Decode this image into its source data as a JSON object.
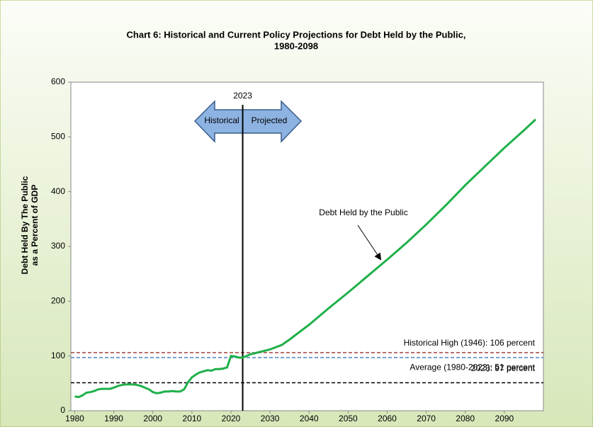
{
  "chart_data": {
    "type": "line",
    "title": [
      "Chart 6:  Historical and Current Policy Projections for Debt Held by the Public,",
      "1980-2098"
    ],
    "y_label": [
      "Debt Held By The Public",
      "as a Percent of GDP"
    ],
    "xlim": [
      1979,
      2100
    ],
    "ylim": [
      0,
      600
    ],
    "xticks": [
      1980,
      1990,
      2000,
      2010,
      2020,
      2030,
      2040,
      2050,
      2060,
      2070,
      2080,
      2090
    ],
    "yticks": [
      0,
      100,
      200,
      300,
      400,
      500,
      600
    ],
    "series": [
      {
        "name": "Debt Held by the Public",
        "color": "#1fb04a",
        "x": [
          1980,
          1981,
          1982,
          1983,
          1984,
          1985,
          1986,
          1987,
          1988,
          1989,
          1990,
          1991,
          1992,
          1993,
          1994,
          1995,
          1996,
          1997,
          1998,
          1999,
          2000,
          2001,
          2002,
          2003,
          2004,
          2005,
          2006,
          2007,
          2008,
          2009,
          2010,
          2011,
          2012,
          2013,
          2014,
          2015,
          2016,
          2017,
          2018,
          2019,
          2020,
          2021,
          2022,
          2023,
          2025,
          2030,
          2033,
          2035,
          2040,
          2045,
          2050,
          2055,
          2060,
          2065,
          2070,
          2075,
          2080,
          2085,
          2090,
          2095,
          2098
        ],
        "values": [
          26,
          25,
          28,
          33,
          34,
          36,
          39,
          40,
          40,
          40,
          42,
          45,
          47,
          48,
          48,
          48,
          47,
          45,
          42,
          39,
          34,
          32,
          33,
          35,
          35,
          36,
          35,
          35,
          39,
          52,
          61,
          66,
          70,
          72,
          74,
          73,
          76,
          76,
          77,
          79,
          100,
          99,
          97,
          97,
          103,
          112,
          120,
          130,
          157,
          187,
          216,
          246,
          276,
          307,
          340,
          375,
          412,
          446,
          480,
          512,
          532
        ]
      }
    ],
    "reference_lines": [
      {
        "value": 106,
        "label": "Historical High (1946): 106 percent",
        "color": "#a0403c"
      },
      {
        "value": 97,
        "label": "2023: 97 percent",
        "color": "#4f81bd"
      },
      {
        "value": 51,
        "label": "Average (1980-2023): 51 percent",
        "color": "#000000"
      }
    ],
    "divider": {
      "x": 2023,
      "label": "2023",
      "left_label": "Historical",
      "right_label": "Projected"
    },
    "reference_label_colors": [
      "#a0403c",
      "#4f81bd",
      "#000000"
    ]
  }
}
